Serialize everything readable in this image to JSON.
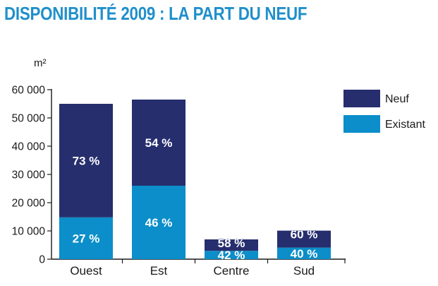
{
  "chart_data": {
    "type": "bar",
    "stacked": true,
    "title": "DISPONIBILITÉ 2009 : LA PART DU NEUF",
    "ylabel": "m²",
    "ylim": [
      0,
      60000
    ],
    "yticks": [
      0,
      10000,
      20000,
      30000,
      40000,
      50000,
      60000
    ],
    "ytick_labels": [
      "0",
      "10 000",
      "20 000",
      "30 000",
      "40 000",
      "50 000",
      "60 000"
    ],
    "categories": [
      "Ouest",
      "Est",
      "Centre",
      "Sud"
    ],
    "series": [
      {
        "name": "Existant",
        "color": "#0b8ec9",
        "values": [
          14800,
          26000,
          2950,
          4100
        ],
        "labels": [
          "27 %",
          "46 %",
          "42 %",
          "40 %"
        ]
      },
      {
        "name": "Neuf",
        "color": "#262e6e",
        "values": [
          40200,
          30500,
          4050,
          6000
        ],
        "labels": [
          "73 %",
          "54 %",
          "58 %",
          "60 %"
        ]
      }
    ],
    "legend": {
      "placement": "top-right",
      "entries": [
        "Neuf",
        "Existant"
      ]
    },
    "grid": false
  }
}
